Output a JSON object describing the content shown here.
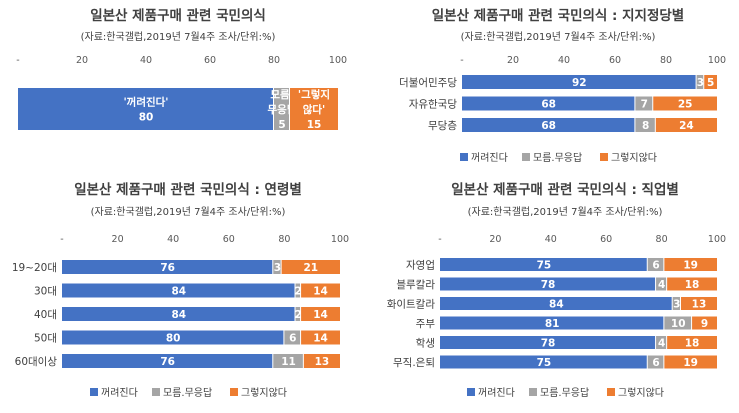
{
  "colors": {
    "bar1": "#4472C4",
    "bar2": "#A5A5A5",
    "bar3": "#ED7D31"
  },
  "chart_data": [
    {
      "type": "bar",
      "orientation": "horizontal-stacked",
      "title": "일본산 제품구매 관련 국민의식",
      "subtitle": "(자료:한국갤럽,2019년 7월4주 조사/단위:%)",
      "xlim": [
        0,
        100
      ],
      "xticks": [
        "-",
        "20",
        "40",
        "60",
        "80",
        "100"
      ],
      "categories": [
        ""
      ],
      "series": [
        {
          "name": "꺼려진다",
          "values": [
            80
          ]
        },
        {
          "name": "모름.무응답",
          "values": [
            5
          ]
        },
        {
          "name": "그렇지않다",
          "values": [
            15
          ]
        }
      ],
      "bar_labels": [
        [
          "'꺼려진다'",
          "80"
        ],
        [
          "모름.",
          "무응답",
          "5"
        ],
        [
          "'그렇지",
          "않다'",
          "15"
        ]
      ],
      "legend": false
    },
    {
      "type": "bar",
      "orientation": "horizontal-stacked",
      "title": "일본산 제품구매 관련 국민의식 : 지지정당별",
      "subtitle": "(자료:한국갤럽,2019년 7월4주 조사/단위:%)",
      "xlim": [
        0,
        100
      ],
      "xticks": [
        "-",
        "20",
        "40",
        "60",
        "80",
        "100"
      ],
      "categories": [
        "더불어민주당",
        "자유한국당",
        "무당층"
      ],
      "series": [
        {
          "name": "꺼려진다",
          "values": [
            92,
            68,
            68
          ]
        },
        {
          "name": "모름.무응답",
          "values": [
            3,
            7,
            8
          ]
        },
        {
          "name": "그렇지않다",
          "values": [
            5,
            25,
            24
          ]
        }
      ],
      "legend": "bottom"
    },
    {
      "type": "bar",
      "orientation": "horizontal-stacked",
      "title": "일본산 제품구매 관련 국민의식 : 연령별",
      "subtitle": "(자료:한국갤럽,2019년 7월4주 조사/단위:%)",
      "xlim": [
        0,
        100
      ],
      "xticks": [
        "-",
        "20",
        "40",
        "60",
        "80",
        "100"
      ],
      "categories": [
        "19~20대",
        "30대",
        "40대",
        "50대",
        "60대이상"
      ],
      "series": [
        {
          "name": "꺼려진다",
          "values": [
            76,
            84,
            84,
            80,
            76
          ]
        },
        {
          "name": "모름.무응답",
          "values": [
            3,
            2,
            2,
            6,
            11
          ]
        },
        {
          "name": "그렇지않다",
          "values": [
            21,
            14,
            14,
            14,
            13
          ]
        }
      ],
      "legend": "bottom"
    },
    {
      "type": "bar",
      "orientation": "horizontal-stacked",
      "title": "일본산 제품구매 관련 국민의식 : 직업별",
      "subtitle": "(자료:한국갤럽,2019년 7월4주 조사/단위:%)",
      "xlim": [
        0,
        100
      ],
      "xticks": [
        "-",
        "20",
        "40",
        "60",
        "80",
        "100"
      ],
      "categories": [
        "자영업",
        "블루칼라",
        "화이트칼라",
        "주부",
        "학생",
        "무직.은퇴"
      ],
      "series": [
        {
          "name": "꺼려진다",
          "values": [
            75,
            78,
            84,
            81,
            78,
            75
          ]
        },
        {
          "name": "모름.무응답",
          "values": [
            6,
            4,
            3,
            10,
            4,
            6
          ]
        },
        {
          "name": "그렇지않다",
          "values": [
            19,
            18,
            13,
            9,
            18,
            19
          ]
        }
      ],
      "legend": "bottom"
    }
  ]
}
